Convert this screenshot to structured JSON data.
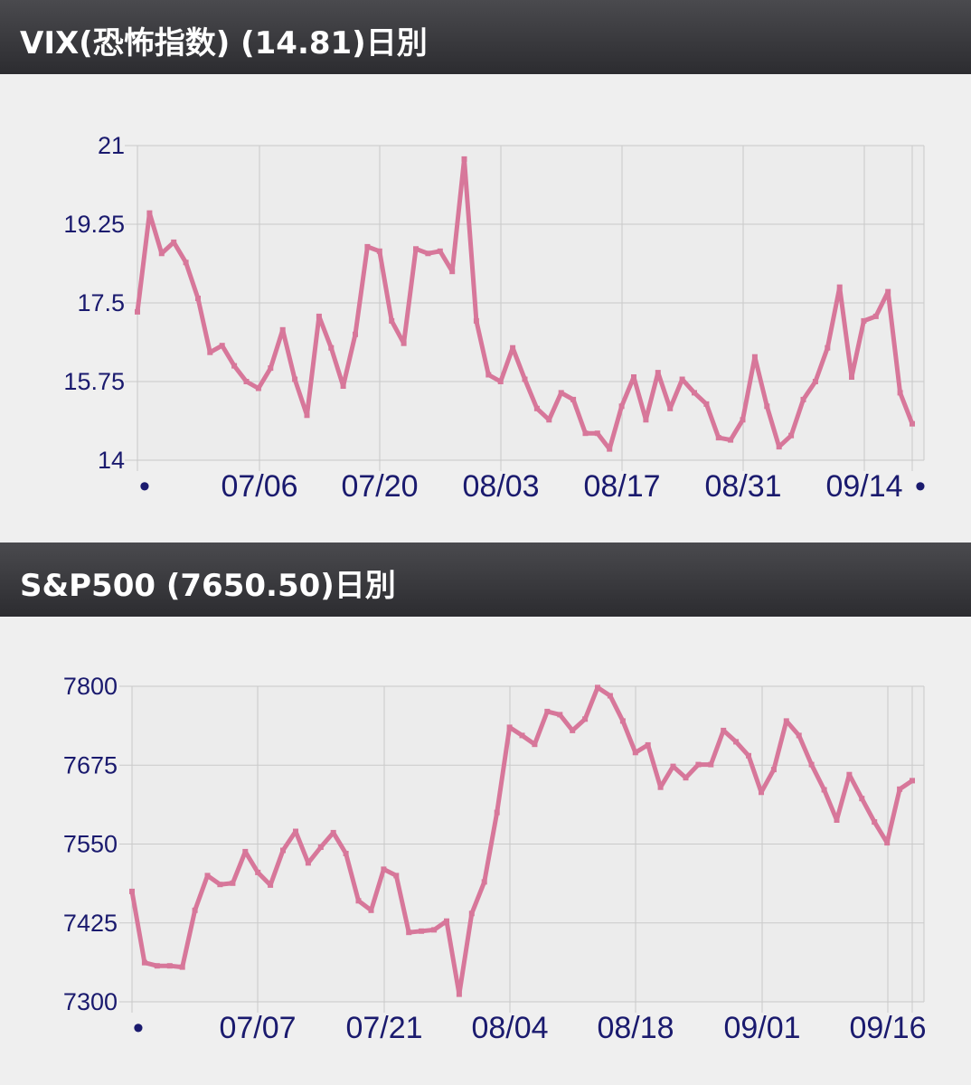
{
  "panels": [
    {
      "title": "VIX(恐怖指数) (14.81)日別",
      "chart_data": {
        "type": "line",
        "series_color": "#d7779a",
        "ylim": [
          14,
          21
        ],
        "y_ticks": [
          "21",
          "19.25",
          "17.5",
          "15.75",
          "14"
        ],
        "x_tick_labels": [
          "•",
          "07/06",
          "07/20",
          "08/03",
          "08/17",
          "08/31",
          "09/14",
          "•"
        ],
        "grid": true,
        "values": [
          17.3,
          19.5,
          18.6,
          18.85,
          18.4,
          17.6,
          16.4,
          16.55,
          16.1,
          15.75,
          15.6,
          16.05,
          16.9,
          15.8,
          15.0,
          17.2,
          16.5,
          15.65,
          16.8,
          18.75,
          18.65,
          17.1,
          16.6,
          18.7,
          18.6,
          18.65,
          18.2,
          20.7,
          17.1,
          15.9,
          15.75,
          16.5,
          15.8,
          15.15,
          14.9,
          15.5,
          15.35,
          14.6,
          14.6,
          14.25,
          15.2,
          15.85,
          14.9,
          15.95,
          15.15,
          15.8,
          15.5,
          15.25,
          14.5,
          14.45,
          14.9,
          16.3,
          15.2,
          14.3,
          14.55,
          15.35,
          15.75,
          16.5,
          17.85,
          15.85,
          17.1,
          17.2,
          17.75,
          15.5,
          14.81
        ]
      }
    },
    {
      "title": "S&P500 (7650.50)日別",
      "chart_data": {
        "type": "line",
        "series_color": "#d7779a",
        "ylim": [
          7300,
          7800
        ],
        "y_ticks": [
          "7800",
          "7675",
          "7550",
          "7425",
          "7300"
        ],
        "x_tick_labels": [
          "•",
          "07/07",
          "07/21",
          "08/04",
          "08/18",
          "09/01",
          "09/16"
        ],
        "grid": true,
        "values": [
          7475,
          7362,
          7357,
          7357,
          7355,
          7445,
          7500,
          7486,
          7488,
          7538,
          7505,
          7485,
          7540,
          7570,
          7520,
          7545,
          7568,
          7535,
          7460,
          7445,
          7510,
          7500,
          7410,
          7412,
          7414,
          7428,
          7312,
          7440,
          7490,
          7600,
          7735,
          7722,
          7708,
          7760,
          7755,
          7730,
          7748,
          7798,
          7785,
          7745,
          7695,
          7707,
          7640,
          7673,
          7655,
          7676,
          7676,
          7730,
          7712,
          7690,
          7632,
          7668,
          7745,
          7722,
          7676,
          7636,
          7588,
          7660,
          7622,
          7585,
          7552,
          7637,
          7650.5
        ]
      }
    }
  ]
}
